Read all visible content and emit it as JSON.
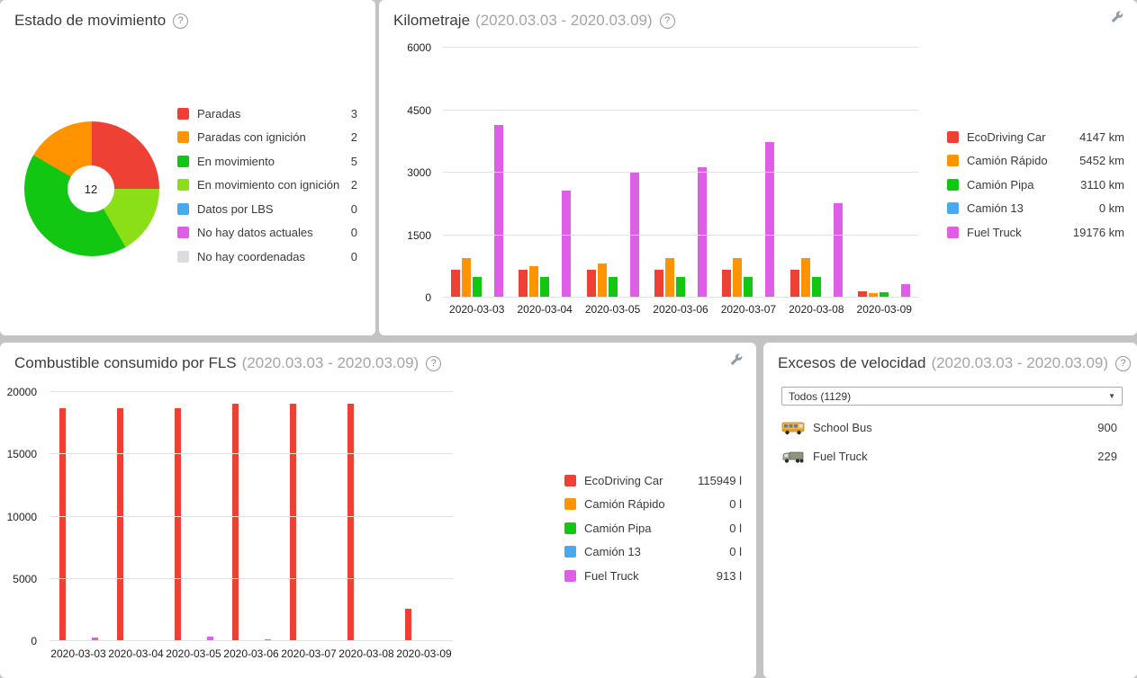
{
  "colors": {
    "red": "#ee4035",
    "orange": "#ff9300",
    "green": "#12c712",
    "light_green": "#8bdf16",
    "blue": "#47a9ef",
    "magenta": "#de5ee8",
    "gray": "#dcdcdc",
    "page_background": "#c3c3c3",
    "panel_background": "#ffffff"
  },
  "panels": {
    "movement": {
      "title": "Estado de movimiento",
      "help_glyph": "?"
    },
    "mileage": {
      "title": "Kilometraje",
      "period": "(2020.03.03 - 2020.03.09)",
      "help_glyph": "?"
    },
    "fuel": {
      "title": "Combustible consumido por FLS",
      "period": "(2020.03.03 - 2020.03.09)",
      "help_glyph": "?"
    },
    "speeding": {
      "title": "Excesos de velocidad",
      "period": "(2020.03.03 - 2020.03.09)",
      "help_glyph": "?",
      "filter_value": "Todos (1129)",
      "rows": [
        {
          "icon": "school-bus-icon",
          "label": "School Bus",
          "value": "900"
        },
        {
          "icon": "fuel-truck-icon",
          "label": "Fuel Truck",
          "value": "229"
        }
      ]
    }
  },
  "chart_data": [
    {
      "id": "movement-status",
      "type": "pie",
      "title": "Estado de movimiento",
      "center_label": "12",
      "labels": [
        "Paradas",
        "Paradas con ignición",
        "En movimiento",
        "En movimiento con ignición",
        "Datos por LBS",
        "No hay datos actuales",
        "No hay coordenadas"
      ],
      "values": [
        3,
        2,
        5,
        2,
        0,
        0,
        0
      ],
      "legend_values": [
        "3",
        "2",
        "5",
        "2",
        "0",
        "0",
        "0"
      ],
      "colors": [
        "#ee4035",
        "#ff9300",
        "#12c712",
        "#8bdf16",
        "#47a9ef",
        "#de5ee8",
        "#dcdcdc"
      ],
      "draw_order": [
        0,
        3,
        2,
        1
      ],
      "legend_position": "right"
    },
    {
      "id": "mileage",
      "type": "bar",
      "title": "Kilometraje (2020.03.03 - 2020.03.09)",
      "categories": [
        "2020-03-03",
        "2020-03-04",
        "2020-03-05",
        "2020-03-06",
        "2020-03-07",
        "2020-03-08",
        "2020-03-09"
      ],
      "series": [
        {
          "name": "EcoDriving Car",
          "color": "#ee4035",
          "values": [
            665,
            665,
            665,
            665,
            665,
            665,
            157
          ],
          "total": "4147 km"
        },
        {
          "name": "Camión Rápido",
          "color": "#ff9300",
          "values": [
            940,
            760,
            820,
            940,
            940,
            940,
            112
          ],
          "total": "5452 km"
        },
        {
          "name": "Camión Pipa",
          "color": "#12c712",
          "values": [
            495,
            495,
            495,
            495,
            495,
            495,
            140
          ],
          "total": "3110 km"
        },
        {
          "name": "Camión 13",
          "color": "#47a9ef",
          "values": [
            0,
            0,
            0,
            0,
            0,
            0,
            0
          ],
          "total": "0 km"
        },
        {
          "name": "Fuel Truck",
          "color": "#de5ee8",
          "values": [
            4150,
            2560,
            3010,
            3120,
            3740,
            2270,
            326
          ],
          "total": "19176 km"
        }
      ],
      "ylabel": "km",
      "ylim": [
        0,
        6000
      ],
      "yticks": [
        6000,
        4500,
        3000,
        1500,
        0
      ],
      "grid": true,
      "legend_position": "right"
    },
    {
      "id": "fuel",
      "type": "bar",
      "title": "Combustible consumido por FLS (2020.03.03 - 2020.03.09)",
      "categories": [
        "2020-03-03",
        "2020-03-04",
        "2020-03-05",
        "2020-03-06",
        "2020-03-07",
        "2020-03-08",
        "2020-03-09"
      ],
      "series": [
        {
          "name": "EcoDriving Car",
          "color": "#ee4035",
          "values": [
            18700,
            18700,
            18700,
            19080,
            19080,
            19060,
            2629
          ],
          "total": "115949 l"
        },
        {
          "name": "Camión Rápido",
          "color": "#ff9300",
          "values": [
            0,
            0,
            0,
            0,
            0,
            0,
            0
          ],
          "total": "0 l"
        },
        {
          "name": "Camión Pipa",
          "color": "#12c712",
          "values": [
            0,
            0,
            0,
            0,
            0,
            0,
            0
          ],
          "total": "0 l"
        },
        {
          "name": "Camión 13",
          "color": "#47a9ef",
          "values": [
            0,
            0,
            0,
            0,
            0,
            0,
            0
          ],
          "total": "0 l"
        },
        {
          "name": "Fuel Truck",
          "color": "#de5ee8",
          "values": [
            280,
            0,
            350,
            180,
            103,
            0,
            0
          ],
          "total": "913 l"
        }
      ],
      "ylabel": "l",
      "ylim": [
        0,
        20000
      ],
      "yticks": [
        20000,
        15000,
        10000,
        5000,
        0
      ],
      "grid": true,
      "legend_position": "right"
    }
  ]
}
